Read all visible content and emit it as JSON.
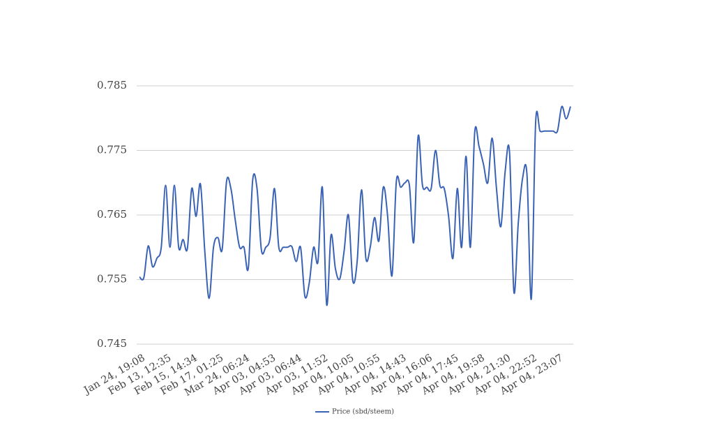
{
  "chart_data": {
    "type": "line",
    "categories": [
      "Jan 24, 19:08",
      null,
      null,
      null,
      null,
      null,
      "Feb 13, 12:35",
      null,
      null,
      null,
      null,
      null,
      "Feb 15, 14:34",
      null,
      null,
      null,
      null,
      null,
      "Feb 17, 01:25",
      null,
      null,
      null,
      null,
      null,
      "Mar 24, 06:24",
      null,
      null,
      null,
      null,
      null,
      "Apr 03, 04:53",
      null,
      null,
      null,
      null,
      null,
      "Apr 03, 06:44",
      null,
      null,
      null,
      null,
      null,
      "Apr 03, 11:52",
      null,
      null,
      null,
      null,
      null,
      "Apr 04, 10:05",
      null,
      null,
      null,
      null,
      null,
      "Apr 04, 10:55",
      null,
      null,
      null,
      null,
      null,
      "Apr 04, 14:43",
      null,
      null,
      null,
      null,
      null,
      "Apr 04, 16:06",
      null,
      null,
      null,
      null,
      null,
      "Apr 04, 17:45",
      null,
      null,
      null,
      null,
      null,
      "Apr 04, 19:58",
      null,
      null,
      null,
      null,
      null,
      "Apr 04, 21:30",
      null,
      null,
      null,
      null,
      null,
      "Apr 04, 22:52",
      null,
      null,
      null,
      null,
      null,
      "Apr 04, 23:07",
      null,
      null,
      null
    ],
    "series": [
      {
        "name": "Price (sbd/steem)",
        "color": "#3a62b4",
        "values": [
          0.7554,
          0.7553,
          0.7602,
          0.757,
          0.7583,
          0.76,
          0.7696,
          0.76,
          0.7696,
          0.76,
          0.7612,
          0.7598,
          0.7691,
          0.7648,
          0.7698,
          0.7594,
          0.7521,
          0.76,
          0.7615,
          0.7597,
          0.7702,
          0.7691,
          0.7642,
          0.76,
          0.76,
          0.7568,
          0.7704,
          0.7691,
          0.7596,
          0.76,
          0.7615,
          0.7691,
          0.76,
          0.76,
          0.76,
          0.7601,
          0.7578,
          0.76,
          0.7524,
          0.7545,
          0.76,
          0.7578,
          0.7693,
          0.7511,
          0.7619,
          0.7567,
          0.7551,
          0.7594,
          0.765,
          0.7548,
          0.7578,
          0.7689,
          0.7583,
          0.76,
          0.7646,
          0.761,
          0.7693,
          0.7648,
          0.7556,
          0.7702,
          0.7693,
          0.77,
          0.7696,
          0.7608,
          0.7772,
          0.7696,
          0.7693,
          0.7691,
          0.775,
          0.7696,
          0.7691,
          0.7648,
          0.7583,
          0.7691,
          0.76,
          0.7741,
          0.76,
          0.7778,
          0.7756,
          0.7729,
          0.77,
          0.7769,
          0.7691,
          0.7632,
          0.7718,
          0.7747,
          0.7531,
          0.7637,
          0.7707,
          0.7713,
          0.752,
          0.7794,
          0.778,
          0.778,
          0.778,
          0.778,
          0.778,
          0.7818,
          0.7799,
          0.7818
        ]
      }
    ],
    "ylim": [
      0.745,
      0.785
    ],
    "yticks": [
      0.745,
      0.755,
      0.765,
      0.775,
      0.785
    ],
    "grid": true,
    "legend": "bottom"
  }
}
